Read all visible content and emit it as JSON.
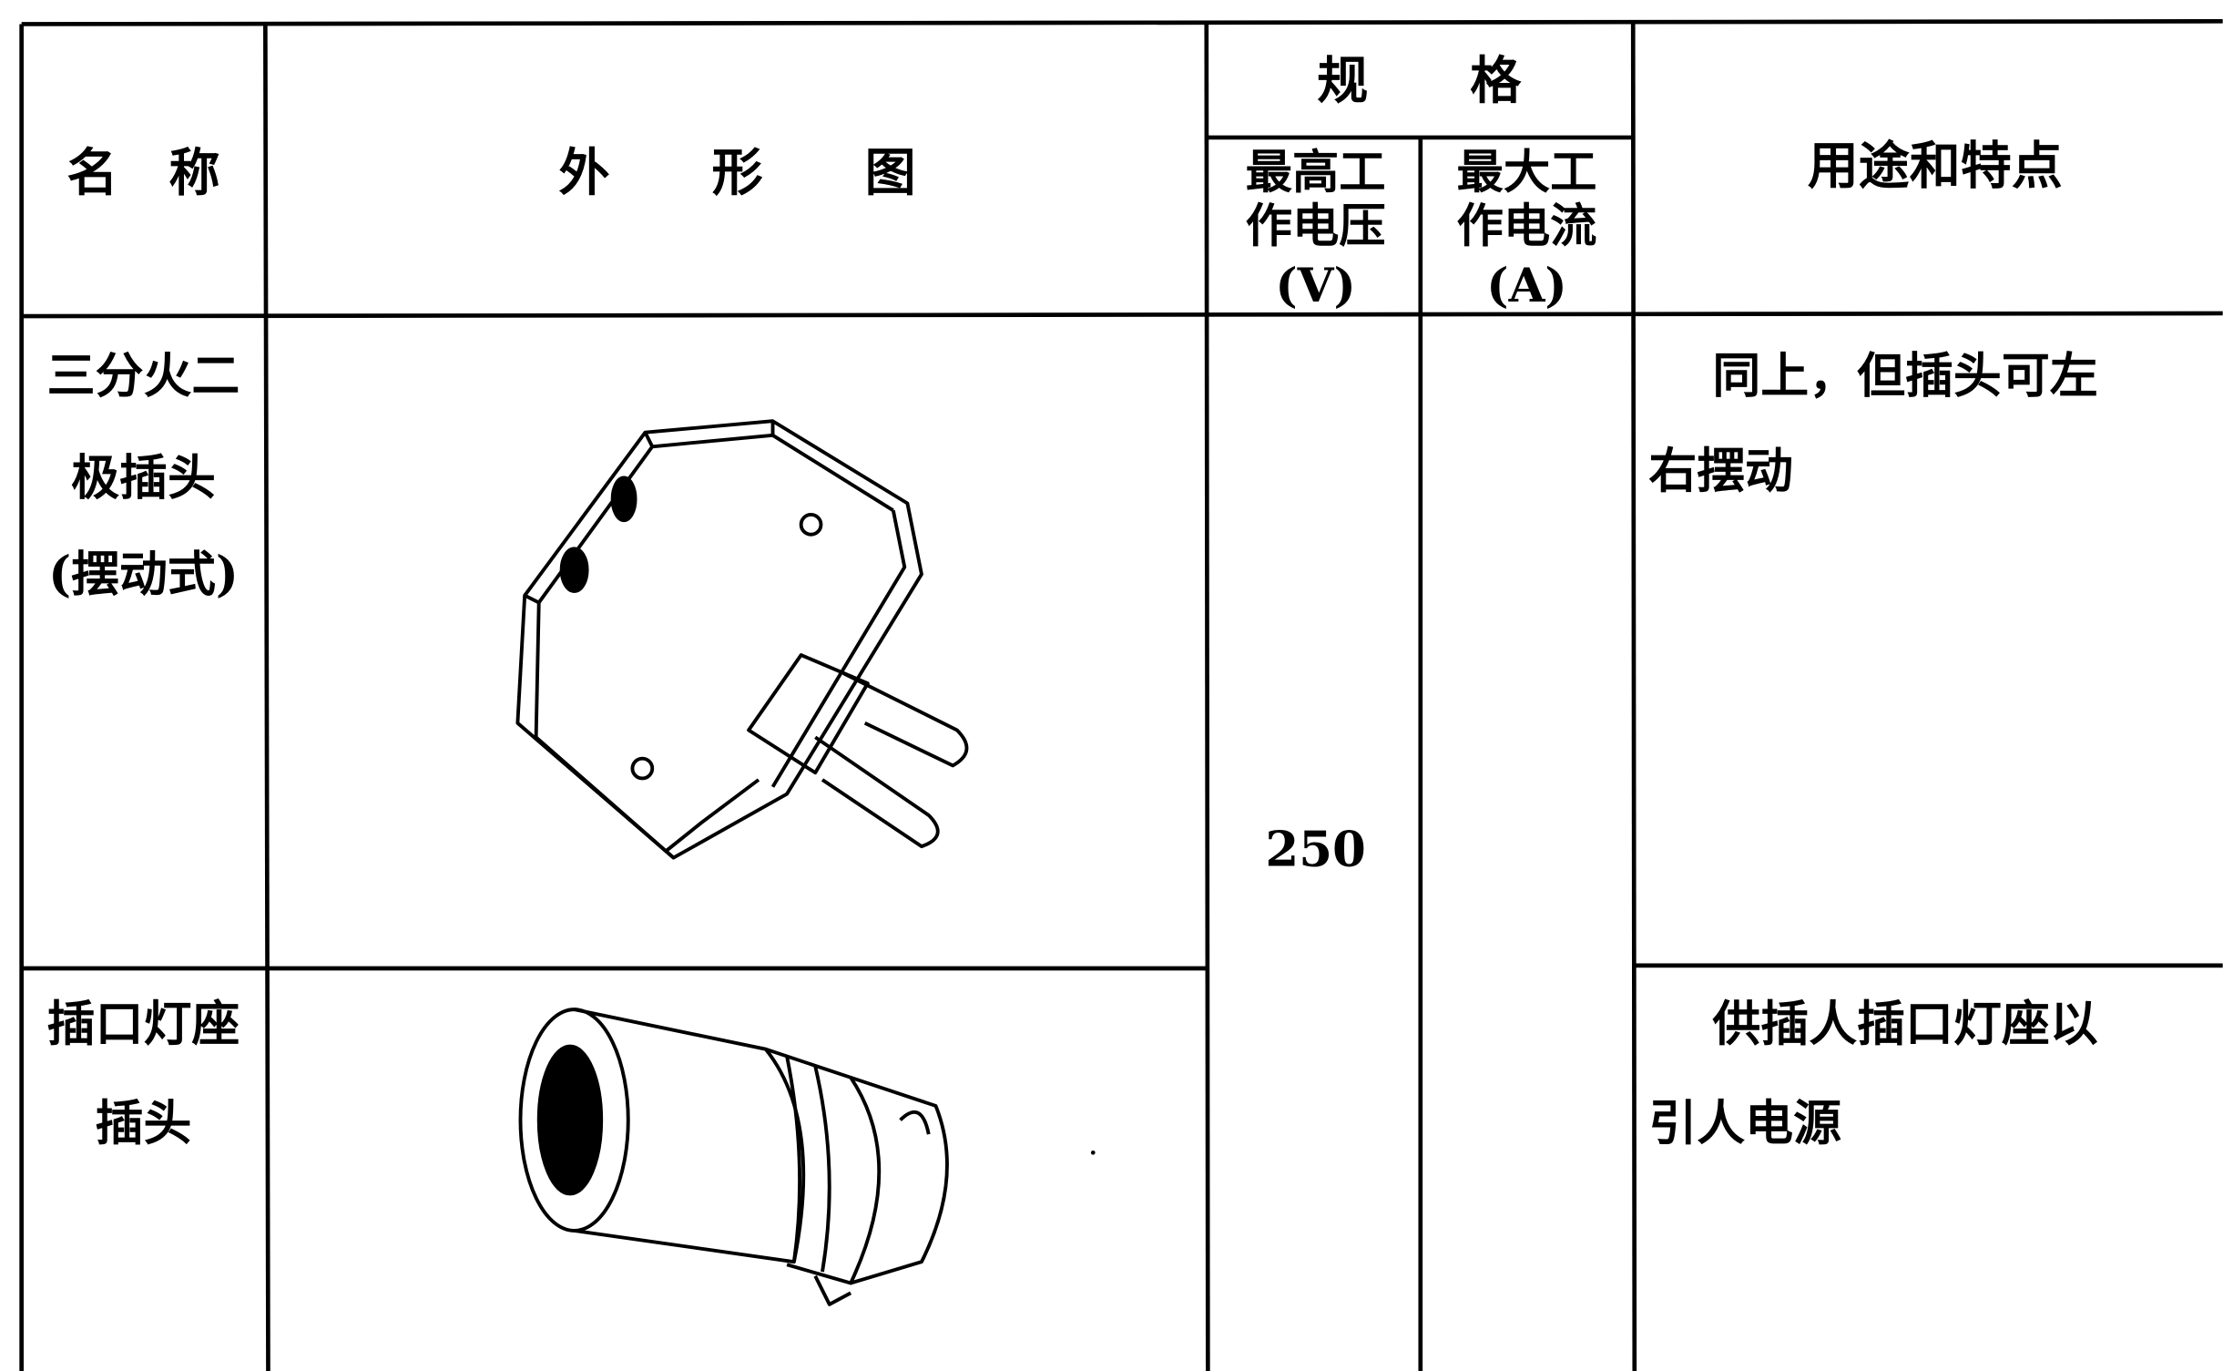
{
  "table": {
    "headers": {
      "name": "名　称",
      "figure": "外　　形　　图",
      "spec": "规　　格",
      "voltage": [
        "最高工",
        "作电压",
        "(V)"
      ],
      "current": [
        "最大工",
        "作电流",
        "(A)"
      ],
      "usage": "用途和特点"
    },
    "rows": [
      {
        "name": [
          "三分火二",
          "极插头",
          "(摆动式)"
        ],
        "voltage": "250",
        "usage": [
          "同上，但插头可左",
          "右摆动"
        ]
      },
      {
        "name": [
          "插口灯座",
          "插头"
        ],
        "usage": [
          "供插人插口灯座以",
          "引人电源"
        ]
      }
    ]
  }
}
